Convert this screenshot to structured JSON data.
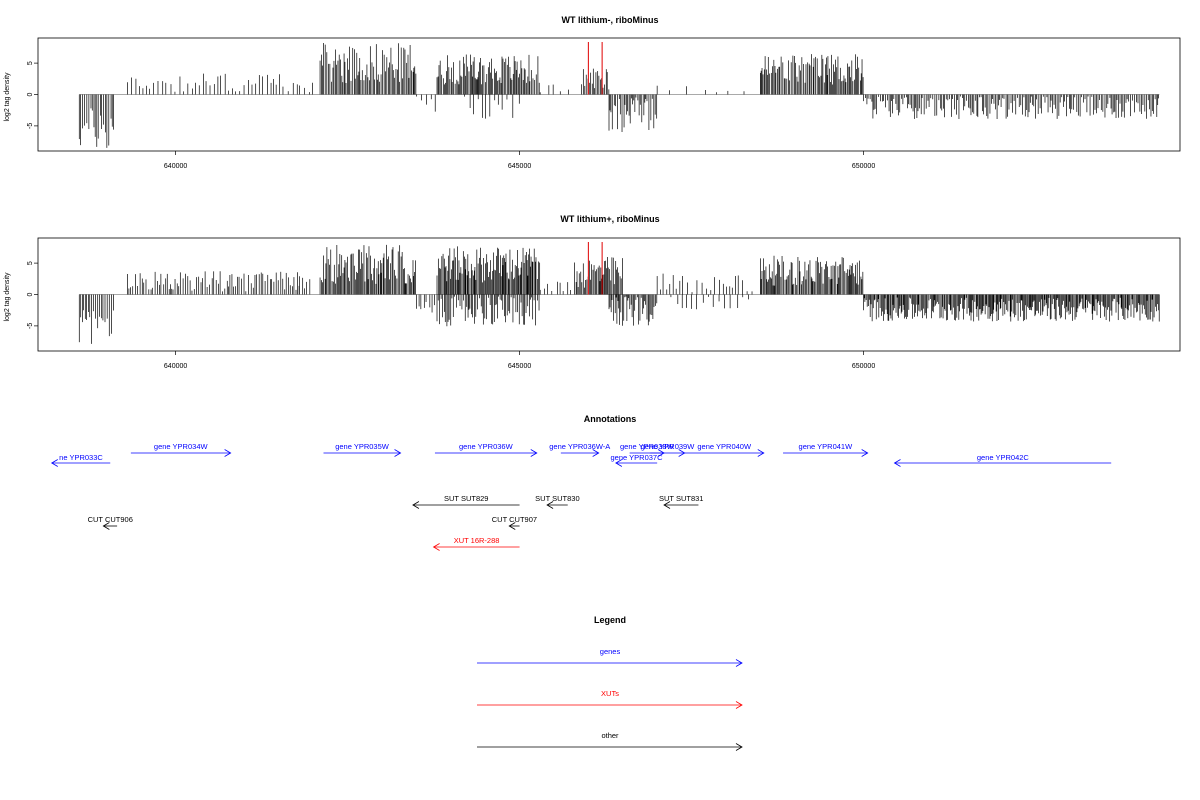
{
  "chart_data": {
    "type": "bar",
    "x_range": [
      638000,
      654600
    ],
    "x_ticks": [
      640000,
      645000,
      650000
    ],
    "x_tick_labels": [
      "640000",
      "645000",
      "650000"
    ],
    "y_ticks": [
      -5,
      0,
      5
    ],
    "y_tick_labels": [
      "-5",
      "0",
      "5"
    ],
    "ylim": [
      -9,
      9
    ],
    "ylabel": "log2 tag density",
    "red_markers": [
      646000,
      646200
    ],
    "tracks": [
      {
        "title": "WT lithium-, riboMinus",
        "segments": [
          {
            "start": 638600,
            "end": 639100,
            "mean": -5.5,
            "var": 2.2,
            "step": 25
          },
          {
            "start": 639300,
            "end": 641800,
            "mean": 1.9,
            "var": 1.0,
            "step": 55
          },
          {
            "start": 641800,
            "end": 642000,
            "mean": 1.0,
            "var": 1.0,
            "step": 60
          },
          {
            "start": 642100,
            "end": 643500,
            "mean": 5.0,
            "var": 2.0,
            "step": 18
          },
          {
            "start": 643500,
            "end": 643800,
            "mean": -1.5,
            "var": 0.8,
            "step": 60
          },
          {
            "start": 643800,
            "end": 645300,
            "mean": 4.0,
            "var": 1.5,
            "step": 18
          },
          {
            "start": 644200,
            "end": 645000,
            "mean": -1.8,
            "var": 1.3,
            "step": 70
          },
          {
            "start": 645300,
            "end": 645800,
            "mean": 0.8,
            "var": 0.6,
            "step": 90
          },
          {
            "start": 645900,
            "end": 646300,
            "mean": 2.6,
            "var": 1.2,
            "step": 22
          },
          {
            "start": 646300,
            "end": 647000,
            "mean": -3.0,
            "var": 2.0,
            "step": 22
          },
          {
            "start": 647000,
            "end": 648300,
            "mean": 0.5,
            "var": 0.7,
            "step": 200
          },
          {
            "start": 648500,
            "end": 650000,
            "mean": 4.0,
            "var": 1.6,
            "step": 18
          },
          {
            "start": 650000,
            "end": 654300,
            "mean": -2.0,
            "var": 1.2,
            "step": 22
          }
        ]
      },
      {
        "title": "WT lithium+, riboMinus",
        "segments": [
          {
            "start": 638600,
            "end": 639100,
            "mean": -5.5,
            "var": 2.2,
            "step": 25
          },
          {
            "start": 639300,
            "end": 641800,
            "mean": 2.1,
            "var": 1.0,
            "step": 30
          },
          {
            "start": 641800,
            "end": 642000,
            "mean": 1.4,
            "var": 1.0,
            "step": 40
          },
          {
            "start": 642100,
            "end": 643500,
            "mean": 4.8,
            "var": 2.0,
            "step": 16
          },
          {
            "start": 643500,
            "end": 643800,
            "mean": -1.8,
            "var": 1.0,
            "step": 40
          },
          {
            "start": 643800,
            "end": 645300,
            "mean": 4.8,
            "var": 1.8,
            "step": 14
          },
          {
            "start": 643800,
            "end": 645300,
            "mean": -2.5,
            "var": 1.6,
            "step": 20
          },
          {
            "start": 645300,
            "end": 645800,
            "mean": 1.2,
            "var": 0.8,
            "step": 60
          },
          {
            "start": 645800,
            "end": 646500,
            "mean": 3.5,
            "var": 1.6,
            "step": 16
          },
          {
            "start": 646300,
            "end": 647000,
            "mean": -2.6,
            "var": 1.6,
            "step": 18
          },
          {
            "start": 647000,
            "end": 648400,
            "mean": 1.6,
            "var": 1.2,
            "step": 60
          },
          {
            "start": 647200,
            "end": 648400,
            "mean": -1.2,
            "var": 0.8,
            "step": 80
          },
          {
            "start": 648500,
            "end": 650000,
            "mean": 3.8,
            "var": 1.5,
            "step": 16
          },
          {
            "start": 650000,
            "end": 654300,
            "mean": -2.4,
            "var": 1.2,
            "step": 14
          }
        ]
      }
    ]
  },
  "annotations": {
    "title": "Annotations",
    "items": [
      {
        "label": "ne YPR033C",
        "color": "#0000ff",
        "start": 638200,
        "end": 639050,
        "dir": "left",
        "row": 0.5
      },
      {
        "label": "gene YPR034W",
        "color": "#0000ff",
        "start": 639350,
        "end": 640800,
        "dir": "right",
        "row": 0
      },
      {
        "label": "gene YPR035W",
        "color": "#0000ff",
        "start": 642150,
        "end": 643270,
        "dir": "right",
        "row": 0
      },
      {
        "label": "gene YPR036W",
        "color": "#0000ff",
        "start": 643770,
        "end": 645250,
        "dir": "right",
        "row": 0
      },
      {
        "label": "gene YPR036W-A",
        "color": "#0000ff",
        "start": 645600,
        "end": 646150,
        "dir": "right",
        "row": 0
      },
      {
        "label": "gene YPR037C",
        "color": "#0000ff",
        "start": 646400,
        "end": 647000,
        "dir": "left",
        "row": 0.5
      },
      {
        "label": "gene YPR038W",
        "color": "#0000ff",
        "start": 646600,
        "end": 647100,
        "dir": "right",
        "row": 0
      },
      {
        "label": "gene YPR039W",
        "color": "#0000ff",
        "start": 646900,
        "end": 647400,
        "dir": "right",
        "row": 0
      },
      {
        "label": "gene YPR040W",
        "color": "#0000ff",
        "start": 647400,
        "end": 648550,
        "dir": "right",
        "row": 0
      },
      {
        "label": "gene YPR041W",
        "color": "#0000ff",
        "start": 648830,
        "end": 650060,
        "dir": "right",
        "row": 0
      },
      {
        "label": "gene YPR042C",
        "color": "#0000ff",
        "start": 650450,
        "end": 653600,
        "dir": "left",
        "row": 0.5
      },
      {
        "label": "SUT SUT829",
        "color": "#000000",
        "start": 643450,
        "end": 645000,
        "dir": "left",
        "row": 2
      },
      {
        "label": "SUT SUT830",
        "color": "#000000",
        "start": 645400,
        "end": 645700,
        "dir": "left",
        "row": 2
      },
      {
        "label": "SUT SUT831",
        "color": "#000000",
        "start": 647100,
        "end": 647600,
        "dir": "left",
        "row": 2
      },
      {
        "label": "CUT CUT906",
        "color": "#000000",
        "start": 638950,
        "end": 639150,
        "dir": "left",
        "row": 3
      },
      {
        "label": "CUT CUT907",
        "color": "#000000",
        "start": 644850,
        "end": 645000,
        "dir": "left",
        "row": 3
      },
      {
        "label": "XUT 16R-288",
        "color": "#ff0000",
        "start": 643750,
        "end": 645000,
        "dir": "left",
        "row": 4
      }
    ]
  },
  "legend": {
    "title": "Legend",
    "items": [
      {
        "label": "genes",
        "color": "#0000ff"
      },
      {
        "label": "XUTs",
        "color": "#ff0000"
      },
      {
        "label": "other",
        "color": "#000000"
      }
    ]
  }
}
